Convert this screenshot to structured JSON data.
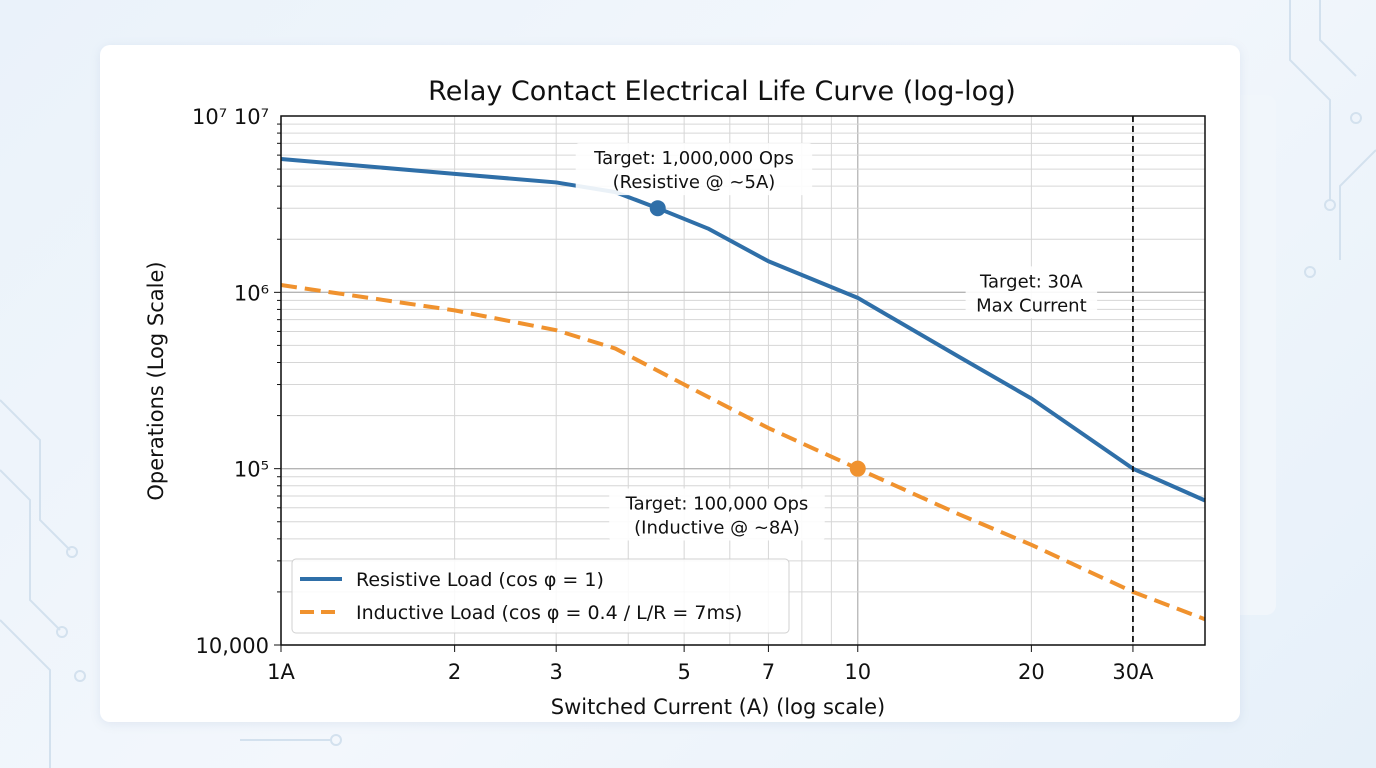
{
  "chart_data": {
    "type": "line",
    "title": "Relay Contact Electrical Life Curve (log-log)",
    "xlabel": "Switched Current (A) (log scale)",
    "ylabel": "Operations (Log Scale)",
    "x_scale": "log",
    "y_scale": "log",
    "xlim": [
      1,
      40
    ],
    "ylim": [
      10000,
      10000000
    ],
    "grid": "major and minor",
    "legend_placement": "lower-left",
    "x_ticks": [
      {
        "value": 1,
        "label": "1A"
      },
      {
        "value": 2,
        "label": "2"
      },
      {
        "value": 3,
        "label": "3"
      },
      {
        "value": 5,
        "label": "5"
      },
      {
        "value": 7,
        "label": "7"
      },
      {
        "value": 10,
        "label": "10"
      },
      {
        "value": 20,
        "label": "20"
      },
      {
        "value": 30,
        "label": "30A"
      }
    ],
    "y_ticks": [
      {
        "value": 10000000,
        "label": "10⁷ 10⁷"
      },
      {
        "value": 1000000,
        "label": "10⁶"
      },
      {
        "value": 100000,
        "label": "10⁵"
      },
      {
        "value": 10000,
        "label": "10,000"
      }
    ],
    "series": [
      {
        "name": "Resistive Load (cos φ = 1)",
        "color": "#2f6fa8",
        "style": "solid",
        "x": [
          1,
          2,
          3,
          3.8,
          4.5,
          5.5,
          7,
          10,
          15,
          20,
          30,
          40
        ],
        "y": [
          5700000,
          4700000,
          4200000,
          3700000,
          3000000,
          2300000,
          1500000,
          930000,
          430000,
          250000,
          100000,
          66000
        ]
      },
      {
        "name": "Inductive Load (cos φ = 0.4 / L/R = 7ms)",
        "color": "#f0922e",
        "style": "dashed",
        "x": [
          1,
          2,
          3,
          3.8,
          5,
          7,
          10,
          15,
          20,
          30,
          40
        ],
        "y": [
          1100000,
          790000,
          610000,
          480000,
          300000,
          170000,
          100000,
          55000,
          37000,
          20000,
          14000
        ]
      }
    ],
    "markers": [
      {
        "x": 4.5,
        "y": 3000000,
        "color": "#2f6fa8"
      },
      {
        "x": 10,
        "y": 100000,
        "color": "#f0922e"
      }
    ],
    "vertical_line": {
      "x": 30,
      "style": "dashed",
      "color": "#111111"
    },
    "annotations": [
      {
        "lines": [
          "Target: 1,000,000 Ops",
          "(Resistive @ ~5A)"
        ],
        "x": 5.2,
        "y": 5000000
      },
      {
        "lines": [
          "Target: 30A",
          "Max Current"
        ],
        "x": 20,
        "y": 1000000
      },
      {
        "lines": [
          "Target: 100,000 Ops",
          "(Inductive @ ~8A)"
        ],
        "x": 5.7,
        "y": 55000
      }
    ]
  }
}
